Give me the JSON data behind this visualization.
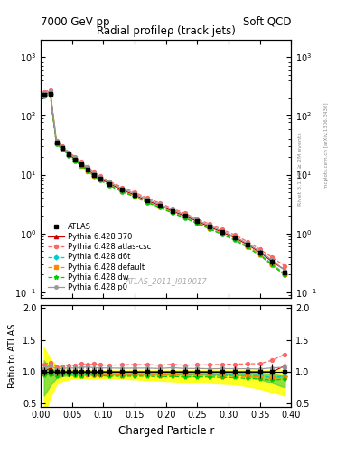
{
  "title_main": "Radial profileρ (track jets)",
  "title_top_left": "7000 GeV pp",
  "title_top_right": "Soft QCD",
  "watermark": "ATLAS_2011_I919017",
  "rivet_label": "Rivet 3.1.10, ≥ 2M events",
  "mcplots_label": "mcplots.cern.ch [arXiv:1306.3436]",
  "xlabel": "Charged Particle r",
  "ylabel_ratio": "Ratio to ATLAS",
  "x_data": [
    0.005,
    0.015,
    0.025,
    0.035,
    0.045,
    0.055,
    0.065,
    0.075,
    0.085,
    0.095,
    0.11,
    0.13,
    0.15,
    0.17,
    0.19,
    0.21,
    0.23,
    0.25,
    0.27,
    0.29,
    0.31,
    0.33,
    0.35,
    0.37,
    0.39
  ],
  "atlas_y": [
    230,
    240,
    35,
    28,
    22,
    18,
    15,
    12,
    10,
    8.5,
    7.0,
    5.5,
    4.5,
    3.6,
    3.0,
    2.4,
    2.0,
    1.6,
    1.3,
    1.05,
    0.85,
    0.65,
    0.48,
    0.33,
    0.22
  ],
  "atlas_yerr": [
    15,
    15,
    2,
    2,
    1.5,
    1.2,
    1.0,
    0.8,
    0.7,
    0.6,
    0.5,
    0.4,
    0.3,
    0.25,
    0.2,
    0.18,
    0.15,
    0.12,
    0.1,
    0.08,
    0.07,
    0.06,
    0.05,
    0.04,
    0.03
  ],
  "py370_y": [
    232,
    252,
    34,
    28,
    22,
    18,
    15,
    12,
    10,
    8.5,
    7.0,
    5.5,
    4.5,
    3.6,
    3.0,
    2.4,
    2.0,
    1.6,
    1.3,
    1.05,
    0.85,
    0.65,
    0.48,
    0.33,
    0.24
  ],
  "py_atlascsc_y": [
    255,
    275,
    37.5,
    30.5,
    24.2,
    19.8,
    16.8,
    13.3,
    11.2,
    9.4,
    7.7,
    6.1,
    5.0,
    4.0,
    3.3,
    2.68,
    2.2,
    1.77,
    1.44,
    1.17,
    0.95,
    0.73,
    0.54,
    0.39,
    0.28
  ],
  "py_d6t_y": [
    223,
    233,
    33.5,
    27.2,
    21.3,
    17.3,
    14.3,
    11.6,
    9.6,
    8.2,
    6.7,
    5.25,
    4.3,
    3.44,
    2.85,
    2.3,
    1.9,
    1.52,
    1.23,
    0.99,
    0.8,
    0.61,
    0.45,
    0.3,
    0.205
  ],
  "py_default_y": [
    222,
    232,
    33.5,
    27.0,
    21.2,
    17.2,
    14.2,
    11.5,
    9.5,
    8.1,
    6.65,
    5.2,
    4.28,
    3.42,
    2.83,
    2.28,
    1.88,
    1.51,
    1.22,
    0.98,
    0.79,
    0.6,
    0.44,
    0.295,
    0.2
  ],
  "py_dw_y": [
    218,
    228,
    32.5,
    26.8,
    21.0,
    17.0,
    14.0,
    11.4,
    9.4,
    7.95,
    6.5,
    5.1,
    4.18,
    3.34,
    2.76,
    2.22,
    1.83,
    1.47,
    1.19,
    0.955,
    0.77,
    0.58,
    0.425,
    0.285,
    0.195
  ],
  "py_p0_y": [
    242,
    262,
    36.5,
    29.5,
    23.3,
    19.0,
    16.0,
    12.9,
    10.6,
    9.0,
    7.4,
    5.8,
    4.75,
    3.8,
    3.15,
    2.55,
    2.1,
    1.68,
    1.36,
    1.1,
    0.89,
    0.68,
    0.5,
    0.35,
    0.235
  ],
  "ylim_main": [
    0.08,
    2000
  ],
  "ylim_ratio": [
    0.45,
    2.05
  ],
  "yticks_ratio": [
    0.5,
    1.0,
    1.5,
    2.0
  ],
  "xlim": [
    0.0,
    0.4
  ],
  "green_band_lo": [
    0.62,
    0.78,
    0.9,
    0.93,
    0.94,
    0.95,
    0.95,
    0.95,
    0.95,
    0.95,
    0.95,
    0.95,
    0.95,
    0.95,
    0.95,
    0.95,
    0.95,
    0.95,
    0.95,
    0.95,
    0.95,
    0.93,
    0.88,
    0.82,
    0.75
  ],
  "green_band_hi": [
    1.18,
    1.05,
    1.02,
    1.01,
    1.0,
    1.0,
    1.0,
    1.0,
    1.0,
    1.0,
    1.0,
    1.0,
    1.0,
    1.0,
    1.0,
    1.0,
    1.0,
    1.0,
    1.0,
    1.0,
    1.0,
    0.99,
    0.98,
    0.96,
    0.93
  ],
  "yellow_band_lo": [
    0.3,
    0.6,
    0.8,
    0.86,
    0.88,
    0.9,
    0.9,
    0.9,
    0.9,
    0.9,
    0.9,
    0.89,
    0.88,
    0.87,
    0.86,
    0.85,
    0.84,
    0.83,
    0.82,
    0.81,
    0.8,
    0.77,
    0.73,
    0.68,
    0.62
  ],
  "yellow_band_hi": [
    1.38,
    1.2,
    1.1,
    1.06,
    1.04,
    1.03,
    1.02,
    1.02,
    1.02,
    1.02,
    1.02,
    1.02,
    1.02,
    1.02,
    1.02,
    1.02,
    1.02,
    1.02,
    1.02,
    1.02,
    1.02,
    1.02,
    1.02,
    1.02,
    1.02
  ],
  "color_py370": "#cc0000",
  "color_atlascsc": "#ff6666",
  "color_d6t": "#00cccc",
  "color_default": "#ff8800",
  "color_dw": "#00cc00",
  "color_p0": "#999999",
  "color_atlas": "#000000",
  "color_green_band": "#44cc44",
  "color_yellow_band": "#ffff00"
}
